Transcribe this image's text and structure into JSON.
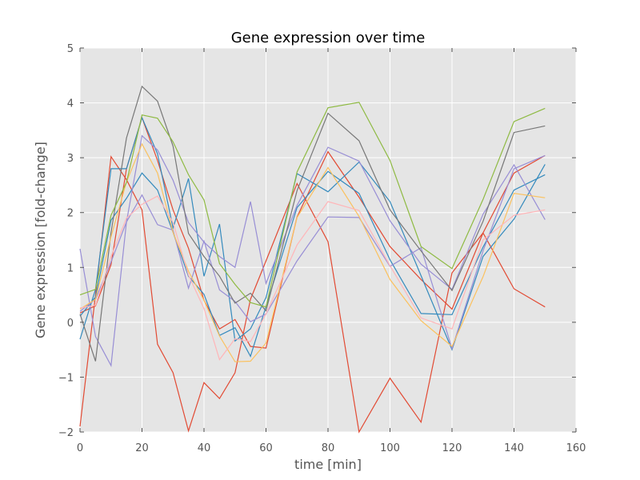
{
  "chart_data": {
    "type": "line",
    "title": "Gene expression over time",
    "xlabel": "time [min]",
    "ylabel": "Gene expression [fold-change]",
    "xlim": [
      0,
      160
    ],
    "ylim": [
      -2,
      5
    ],
    "xticks": [
      0,
      20,
      40,
      60,
      80,
      100,
      120,
      140,
      160
    ],
    "yticks": [
      -2,
      -1,
      0,
      1,
      2,
      3,
      4,
      5
    ],
    "grid": true,
    "background": "#e5e5e5",
    "grid_color": "#ffffff",
    "x": [
      0,
      5,
      10,
      15,
      20,
      25,
      30,
      35,
      40,
      45,
      50,
      55,
      60,
      70,
      80,
      90,
      100,
      110,
      120,
      130,
      140,
      150
    ],
    "series": [
      {
        "color": "#e24a33",
        "values": [
          -1.9,
          0.5,
          3.02,
          2.6,
          2.05,
          -0.4,
          -0.92,
          -1.98,
          -1.1,
          -1.39,
          -0.92,
          0.42,
          1.12,
          2.53,
          1.47,
          -2.0,
          -1.02,
          -1.82,
          0.9,
          1.63,
          0.61,
          0.28
        ]
      },
      {
        "color": "#e24a33",
        "values": [
          0.17,
          0.3,
          1.05,
          2.8,
          3.73,
          2.95,
          2.05,
          1.35,
          0.4,
          -0.12,
          0.05,
          -0.44,
          -0.47,
          1.92,
          3.11,
          2.28,
          1.38,
          0.78,
          0.24,
          1.63,
          2.72,
          3.04
        ]
      },
      {
        "color": "#348abd",
        "values": [
          -0.31,
          0.6,
          2.8,
          2.8,
          3.73,
          3.07,
          1.72,
          2.62,
          0.84,
          1.79,
          -0.34,
          -0.12,
          0.45,
          2.71,
          2.38,
          2.92,
          2.2,
          0.85,
          -0.5,
          1.2,
          1.88,
          2.88
        ]
      },
      {
        "color": "#348abd",
        "values": [
          0.11,
          0.46,
          1.86,
          2.26,
          2.72,
          2.41,
          1.64,
          0.84,
          0.51,
          -0.24,
          -0.1,
          -0.62,
          0.29,
          2.09,
          2.75,
          2.35,
          1.14,
          0.16,
          0.14,
          1.37,
          2.41,
          2.69
        ]
      },
      {
        "color": "#988ed5",
        "values": [
          1.34,
          -0.26,
          -0.79,
          1.83,
          3.4,
          3.14,
          2.59,
          1.82,
          1.46,
          1.2,
          1.0,
          2.2,
          0.71,
          2.13,
          3.19,
          2.94,
          1.85,
          1.06,
          0.6,
          1.97,
          2.87,
          1.87
        ]
      },
      {
        "color": "#988ed5",
        "values": [
          0.2,
          0.42,
          1.1,
          1.83,
          2.32,
          1.78,
          1.68,
          0.62,
          1.48,
          0.59,
          0.38,
          0.01,
          0.15,
          1.12,
          1.92,
          1.91,
          1.02,
          1.36,
          -0.48,
          1.3,
          2.8,
          3.04
        ]
      },
      {
        "color": "#777777",
        "values": [
          0.15,
          -0.71,
          1.64,
          3.36,
          4.3,
          4.03,
          3.21,
          1.62,
          1.2,
          0.84,
          0.35,
          0.53,
          0.21,
          2.4,
          3.81,
          3.31,
          2.05,
          1.3,
          0.58,
          1.84,
          3.46,
          3.58
        ]
      },
      {
        "color": "#fbc15e",
        "values": [
          0.24,
          0.42,
          1.56,
          2.56,
          3.25,
          2.72,
          1.64,
          0.93,
          0.4,
          -0.25,
          -0.72,
          -0.71,
          -0.38,
          1.91,
          2.82,
          1.93,
          0.78,
          0.03,
          -0.44,
          0.83,
          2.35,
          2.27
        ]
      },
      {
        "color": "#8eba42",
        "values": [
          0.5,
          0.6,
          1.95,
          2.55,
          3.78,
          3.72,
          3.29,
          2.69,
          2.23,
          1.07,
          0.69,
          0.36,
          0.28,
          2.74,
          3.91,
          4.01,
          2.95,
          1.38,
          0.98,
          2.24,
          3.66,
          3.9
        ]
      },
      {
        "color": "#ffb5b8",
        "values": [
          0.26,
          0.31,
          1.2,
          1.9,
          2.15,
          2.3,
          1.82,
          0.86,
          0.25,
          -0.68,
          -0.3,
          -0.35,
          0.15,
          1.41,
          2.2,
          2.04,
          1.03,
          0.08,
          -0.12,
          1.5,
          1.95,
          2.05
        ]
      }
    ]
  }
}
